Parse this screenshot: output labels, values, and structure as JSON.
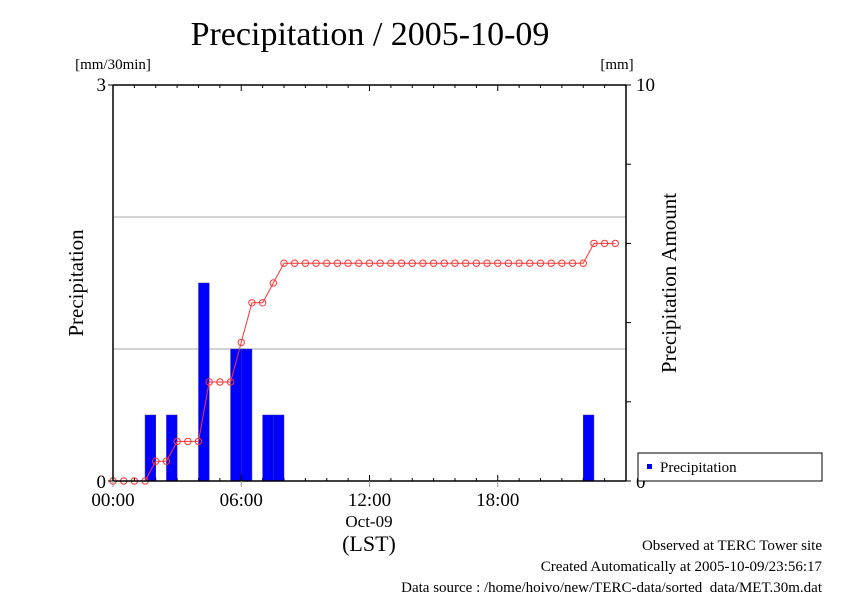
{
  "chart_data": {
    "type": "bar",
    "title": "Precipitation / 2005-10-09",
    "xlabel": "(LST)",
    "x_date_label": "Oct-09",
    "ylabel": "Precipitation",
    "ylabel_unit": "[mm/30min]",
    "y2label": "Precipitation Amount",
    "y2label_unit": "[mm]",
    "ylim": [
      0,
      3
    ],
    "y2lim": [
      0,
      10
    ],
    "xlim_hours": [
      0,
      24
    ],
    "y_ticks": [
      "0",
      "3"
    ],
    "y2_ticks": [
      "0",
      "10"
    ],
    "x_ticks": [
      "00:00",
      "06:00",
      "12:00",
      "18:00"
    ],
    "x_tick_hours": [
      0,
      6,
      12,
      18
    ],
    "grid": true,
    "legend": {
      "position": "bottom-right",
      "entries": [
        "Precipitation"
      ]
    },
    "bar_color": "#0000ff",
    "line_color": "#ff3333",
    "bars": [
      {
        "start": "01:30",
        "end": "02:00",
        "value": 0.5
      },
      {
        "start": "02:30",
        "end": "03:00",
        "value": 0.5
      },
      {
        "start": "04:00",
        "end": "04:30",
        "value": 1.5
      },
      {
        "start": "05:30",
        "end": "06:00",
        "value": 1.0
      },
      {
        "start": "06:00",
        "end": "06:30",
        "value": 1.0
      },
      {
        "start": "07:00",
        "end": "07:30",
        "value": 0.5
      },
      {
        "start": "07:30",
        "end": "08:00",
        "value": 0.5
      },
      {
        "start": "22:00",
        "end": "22:30",
        "value": 0.5
      }
    ],
    "series": [
      {
        "name": "Precipitation Amount (cumulative)",
        "axis": "right",
        "interval_minutes": 30,
        "start": "00:00",
        "values": [
          0,
          0,
          0,
          0,
          0.5,
          0.5,
          1.0,
          1.0,
          1.0,
          2.5,
          2.5,
          2.5,
          3.5,
          4.5,
          4.5,
          5.0,
          5.5,
          5.5,
          5.5,
          5.5,
          5.5,
          5.5,
          5.5,
          5.5,
          5.5,
          5.5,
          5.5,
          5.5,
          5.5,
          5.5,
          5.5,
          5.5,
          5.5,
          5.5,
          5.5,
          5.5,
          5.5,
          5.5,
          5.5,
          5.5,
          5.5,
          5.5,
          5.5,
          5.5,
          5.5,
          6.0,
          6.0,
          6.0
        ]
      }
    ]
  },
  "footer": {
    "line1": "Observed at TERC Tower site",
    "line2": "Created Automatically at 2005-10-09/23:56:17",
    "line3": "Data source : /home/hoivo/new/TERC-data/sorted  data/MET.30m.dat"
  }
}
